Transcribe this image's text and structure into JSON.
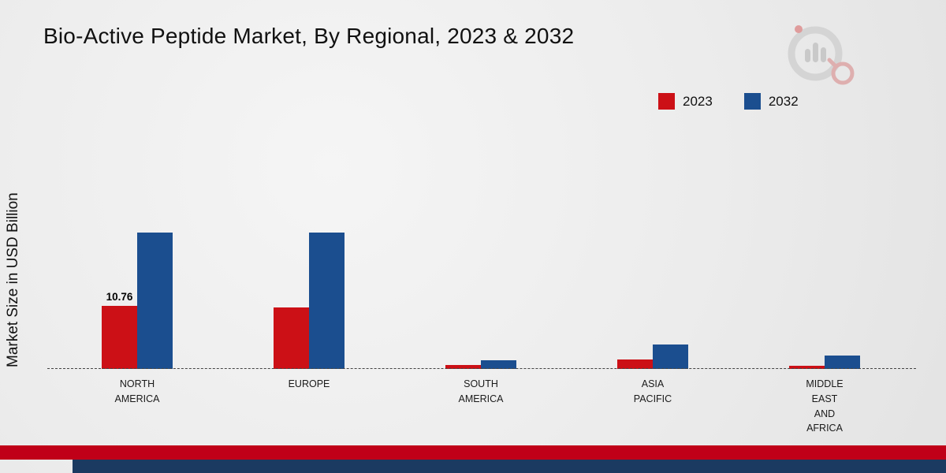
{
  "title": "Bio-Active Peptide Market, By Regional, 2023 & 2032",
  "y_axis_label": "Market Size in USD Billion",
  "legend": [
    {
      "label": "2023",
      "color": "#cc1016"
    },
    {
      "label": "2032",
      "color": "#1b4e8f"
    }
  ],
  "chart_data": {
    "type": "bar",
    "title": "Bio-Active Peptide Market, By Regional, 2023 & 2032",
    "xlabel": "",
    "ylabel": "Market Size in USD Billion",
    "categories": [
      "North America",
      "Europe",
      "South America",
      "Asia Pacific",
      "Middle East and Africa"
    ],
    "category_labels": [
      "NORTH\nAMERICA",
      "EUROPE",
      "SOUTH\nAMERICA",
      "ASIA\nPACIFIC",
      "MIDDLE\nEAST\nAND\nAFRICA"
    ],
    "series": [
      {
        "name": "2023",
        "color": "#cc1016",
        "values": [
          10.76,
          10.5,
          0.7,
          1.6,
          0.6
        ]
      },
      {
        "name": "2032",
        "color": "#1b4e8f",
        "values": [
          23.3,
          23.3,
          1.5,
          4.2,
          2.3
        ]
      }
    ],
    "ylim": [
      0,
      25
    ],
    "grid": false,
    "legend_position": "top-right",
    "baseline_style": "dashed",
    "annotations": [
      {
        "series": "2023",
        "category_index": 0,
        "text": "10.76"
      }
    ]
  },
  "footer": {
    "red_color": "#c00018",
    "navy_color": "#1b3a61"
  }
}
